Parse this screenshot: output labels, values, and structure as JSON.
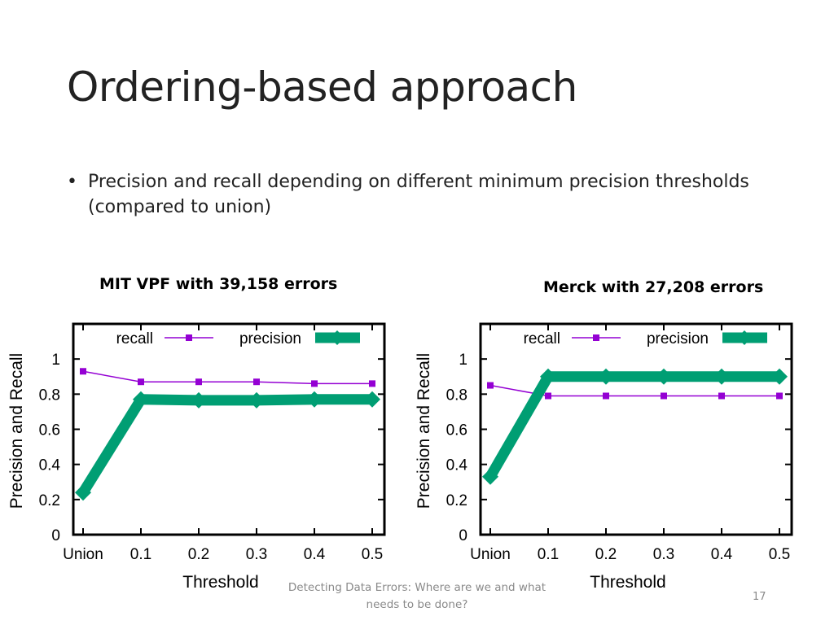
{
  "slide": {
    "title": "Ordering-based approach",
    "bullet": "Precision and recall depending on different minimum precision thresholds (compared to union)",
    "footer": "Detecting Data Errors: Where are we and what needs to be done?",
    "page_number": "17"
  },
  "colors": {
    "recall": "#9400d3",
    "precision": "#009e73"
  },
  "chart_data": [
    {
      "type": "line",
      "title": "MIT VPF with 39,158 errors",
      "xlabel": "Threshold",
      "ylabel": "Precision and Recall",
      "categories": [
        "Union",
        "0.1",
        "0.2",
        "0.3",
        "0.4",
        "0.5"
      ],
      "ylim": [
        0,
        1.2
      ],
      "yticks": [
        "0",
        "0.2",
        "0.4",
        "0.6",
        "0.8",
        "1"
      ],
      "legend_position": "top",
      "series": [
        {
          "name": "recall",
          "values": [
            0.93,
            0.87,
            0.87,
            0.87,
            0.86,
            0.86
          ]
        },
        {
          "name": "precision",
          "values": [
            0.24,
            0.77,
            0.765,
            0.765,
            0.77,
            0.77
          ]
        }
      ]
    },
    {
      "type": "line",
      "title": "Merck with 27,208 errors",
      "xlabel": "Threshold",
      "ylabel": "Precision and Recall",
      "categories": [
        "Union",
        "0.1",
        "0.2",
        "0.3",
        "0.4",
        "0.5"
      ],
      "ylim": [
        0,
        1.2
      ],
      "yticks": [
        "0",
        "0.2",
        "0.4",
        "0.6",
        "0.8",
        "1"
      ],
      "legend_position": "top",
      "series": [
        {
          "name": "recall",
          "values": [
            0.85,
            0.79,
            0.79,
            0.79,
            0.79,
            0.79
          ]
        },
        {
          "name": "precision",
          "values": [
            0.33,
            0.9,
            0.9,
            0.9,
            0.9,
            0.9
          ]
        }
      ]
    }
  ]
}
